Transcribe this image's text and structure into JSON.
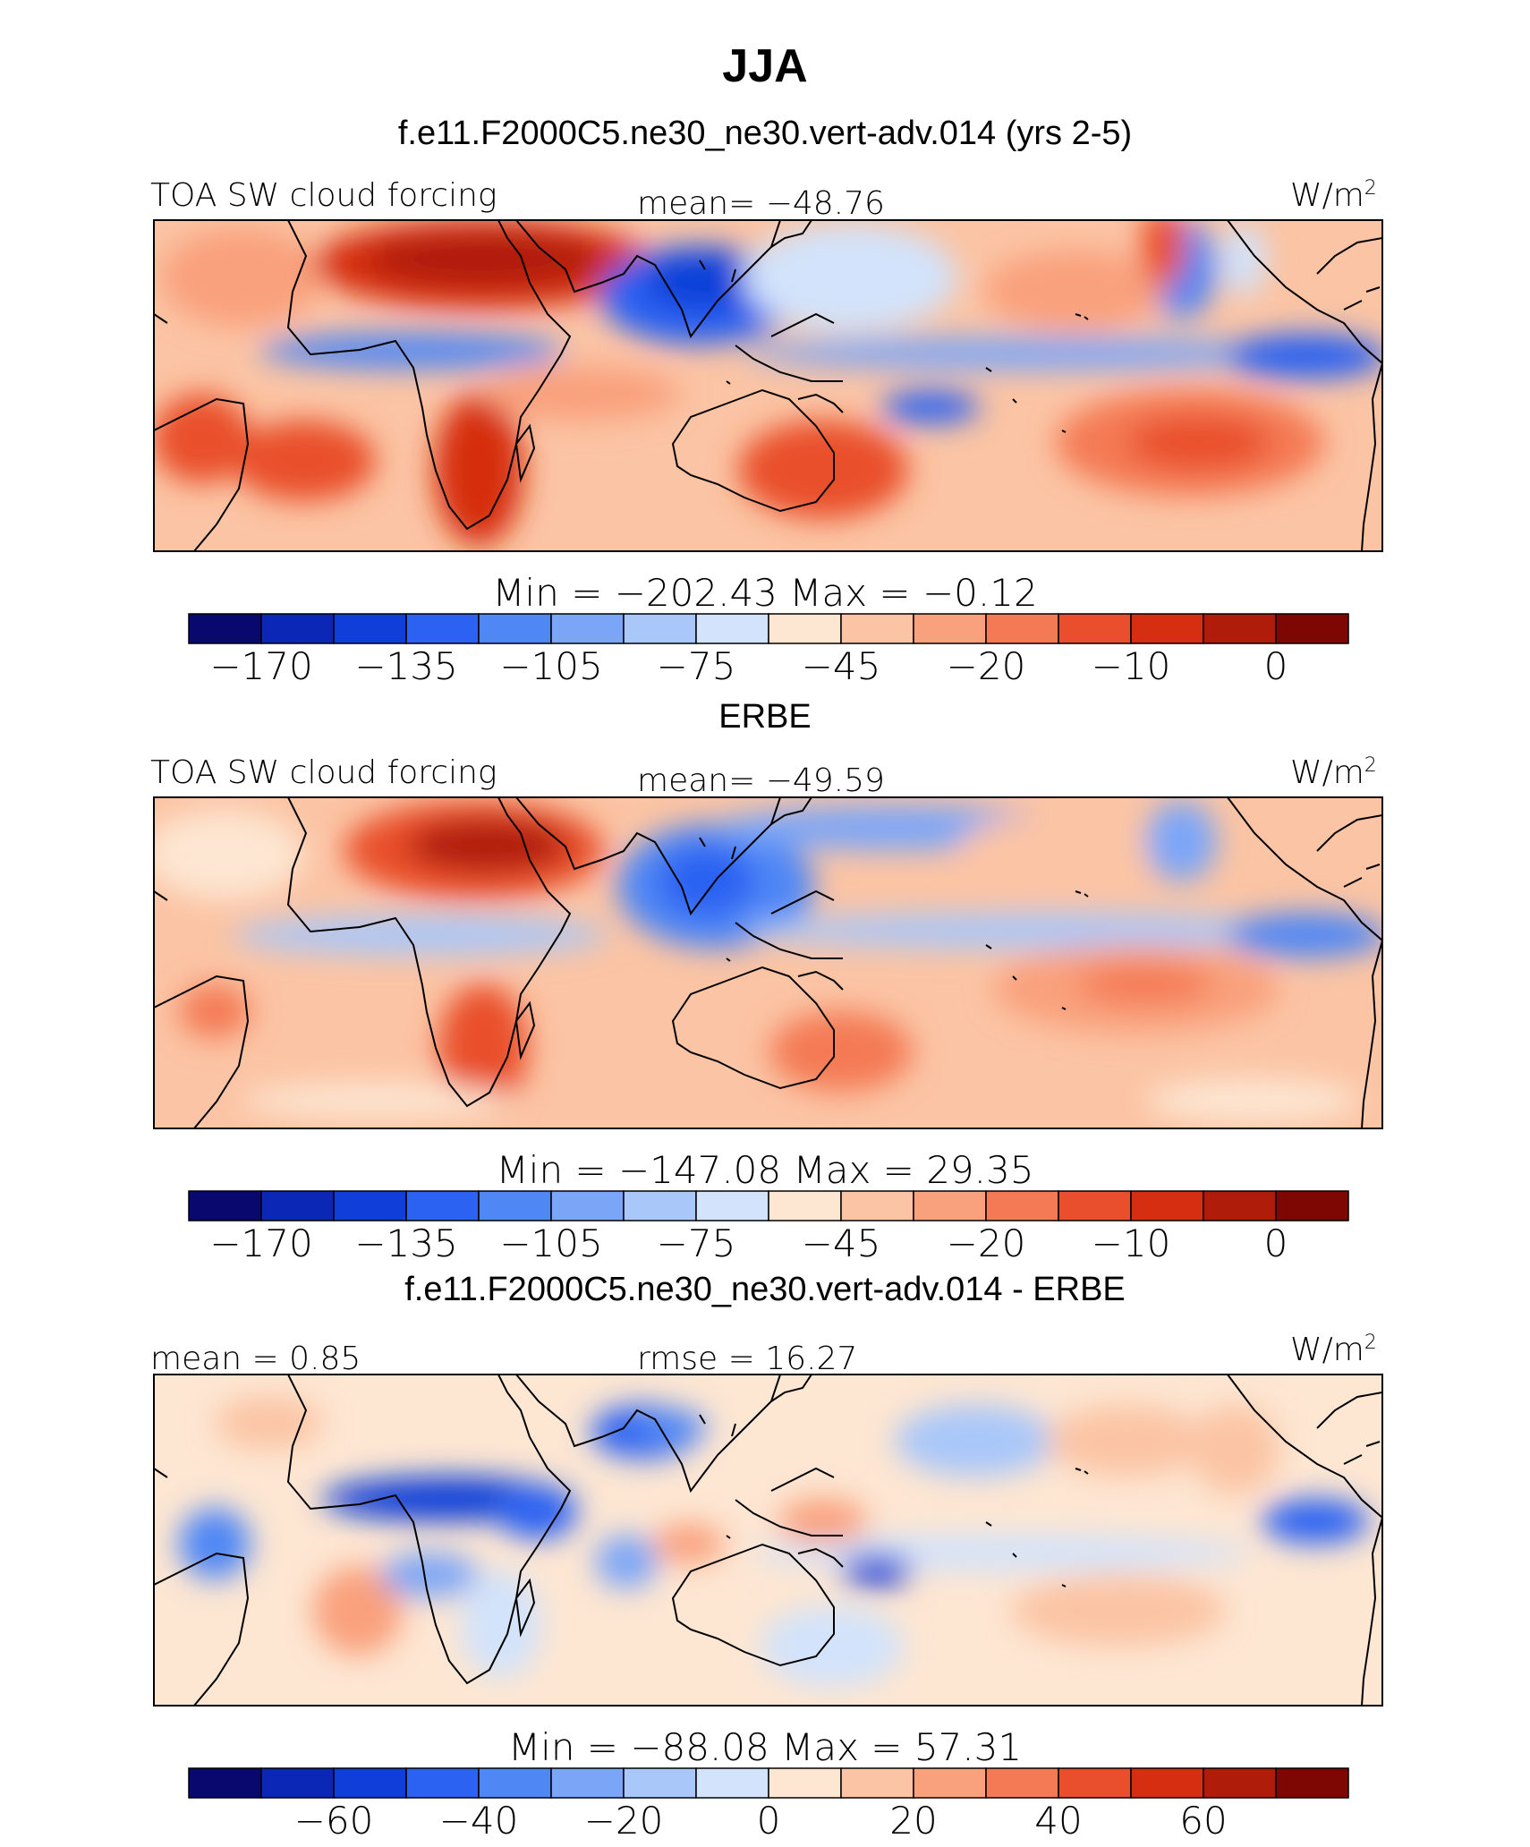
{
  "title": "JJA",
  "subtitle": "f.e11.F2000C5.ne30_ne30.vert-adv.014 (yrs 2-5)",
  "units_label": "W/m",
  "units_sup": "2",
  "palette": {
    "levels": [
      "#08086e",
      "#0b27b5",
      "#0f3fd8",
      "#2c62f2",
      "#4f87f5",
      "#7ba6f7",
      "#a9c7f9",
      "#d2e3fb",
      "#fde6d2",
      "#fbc4a4",
      "#f9a07c",
      "#f47a55",
      "#e94f2c",
      "#d62e10",
      "#b01c0a",
      "#7e0704"
    ],
    "land_outline": "#000000"
  },
  "chart_data": [
    {
      "type": "heatmap",
      "panel_heading": "",
      "left_label": "TOA SW cloud forcing",
      "center_label": "mean=  −48.76",
      "units": "W/m2",
      "min_max": "Min  =  −202.43  Max  =    −0.12",
      "min": -202.43,
      "max": -0.12,
      "mean": -48.76,
      "colorbar_ticks": [
        "−170",
        "−135",
        "−105",
        "−75",
        "−45",
        "−20",
        "−10",
        "0"
      ],
      "contour_levels": [
        -170,
        -155,
        -135,
        -120,
        -105,
        -90,
        -75,
        -60,
        -45,
        -30,
        -20,
        -15,
        -10,
        -5,
        0
      ]
    },
    {
      "type": "heatmap",
      "panel_heading": "ERBE",
      "left_label": "TOA SW cloud forcing",
      "center_label": "mean=  −49.59",
      "units": "W/m2",
      "min_max": "Min  =  −147.08  Max  =    29.35",
      "min": -147.08,
      "max": 29.35,
      "mean": -49.59,
      "colorbar_ticks": [
        "−170",
        "−135",
        "−105",
        "−75",
        "−45",
        "−20",
        "−10",
        "0"
      ],
      "contour_levels": [
        -170,
        -155,
        -135,
        -120,
        -105,
        -90,
        -75,
        -60,
        -45,
        -30,
        -20,
        -15,
        -10,
        -5,
        0
      ]
    },
    {
      "type": "heatmap",
      "panel_heading": "f.e11.F2000C5.ne30_ne30.vert-adv.014 - ERBE",
      "left_label": "mean  =    0.85",
      "center_label": "rmse  =   16.27",
      "units": "W/m2",
      "min_max": "Min  =  −88.08  Max  =    57.31",
      "min": -88.08,
      "max": 57.31,
      "mean": 0.85,
      "rmse": 16.27,
      "colorbar_ticks": [
        "−60",
        "−40",
        "−20",
        "0",
        "20",
        "40",
        "60"
      ],
      "contour_levels": [
        -70,
        -60,
        -50,
        -40,
        -30,
        -20,
        -10,
        0,
        10,
        20,
        30,
        40,
        50,
        60,
        70
      ]
    }
  ]
}
